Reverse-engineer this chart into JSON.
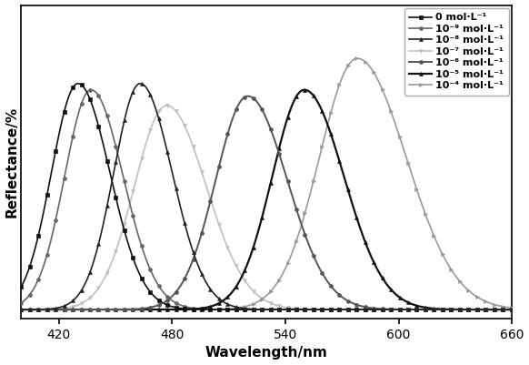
{
  "series": [
    {
      "label": "0 mol·L⁻¹",
      "peak": 430,
      "amplitude": 72,
      "sigma_l": 14,
      "sigma_r": 17,
      "baseline": 3,
      "color": "#111111",
      "marker": "s",
      "markersize": 2.8,
      "linewidth": 1.2,
      "zorder": 7
    },
    {
      "label": "10⁻⁹ mol·L⁻¹",
      "peak": 437,
      "amplitude": 70,
      "sigma_l": 14,
      "sigma_r": 17,
      "baseline": 3,
      "color": "#666666",
      "marker": "o",
      "markersize": 2.8,
      "linewidth": 1.2,
      "zorder": 6
    },
    {
      "label": "10⁻⁸ mol·L⁻¹",
      "peak": 463,
      "amplitude": 72,
      "sigma_l": 14,
      "sigma_r": 17,
      "baseline": 3,
      "color": "#222222",
      "marker": "^",
      "markersize": 2.8,
      "linewidth": 1.2,
      "zorder": 8
    },
    {
      "label": "10⁻⁷ mol·L⁻¹",
      "peak": 477,
      "amplitude": 65,
      "sigma_l": 17,
      "sigma_r": 21,
      "baseline": 3,
      "color": "#c0c0c0",
      "marker": "v",
      "markersize": 2.8,
      "linewidth": 1.2,
      "zorder": 5
    },
    {
      "label": "10⁻⁶ mol·L⁻¹",
      "peak": 520,
      "amplitude": 68,
      "sigma_l": 17,
      "sigma_r": 21,
      "baseline": 3,
      "color": "#555555",
      "marker": "o",
      "markersize": 2.8,
      "linewidth": 1.4,
      "zorder": 7
    },
    {
      "label": "10⁻⁵ mol·L⁻¹",
      "peak": 550,
      "amplitude": 70,
      "sigma_l": 17,
      "sigma_r": 21,
      "baseline": 3,
      "color": "#111111",
      "marker": "^",
      "markersize": 2.8,
      "linewidth": 1.6,
      "zorder": 6
    },
    {
      "label": "10⁻⁴ mol·L⁻¹",
      "peak": 578,
      "amplitude": 80,
      "sigma_l": 20,
      "sigma_r": 26,
      "baseline": 3,
      "color": "#999999",
      "marker": ">",
      "markersize": 2.8,
      "linewidth": 1.2,
      "zorder": 5
    }
  ],
  "xmin": 400,
  "xmax": 660,
  "ymin": 0,
  "ymax": 100,
  "xlabel": "Wavelength/nm",
  "ylabel": "Reflectance/%",
  "xticks": [
    420,
    480,
    540,
    600,
    660
  ],
  "background_color": "#ffffff",
  "legend_fontsize": 8.0,
  "axis_fontsize": 11,
  "tick_fontsize": 10,
  "num_points": 800,
  "markers_per_curve": 55
}
